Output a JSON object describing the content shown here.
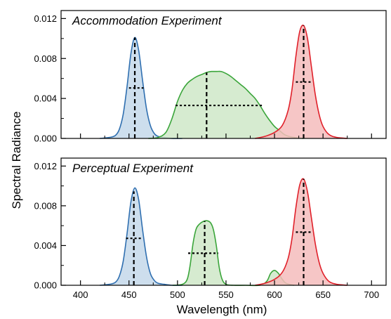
{
  "figure": {
    "ylabel": "Spectral Radiance",
    "xlabel": "Wavelength (nm)"
  },
  "colors": {
    "blue": "#2f6fb0",
    "blue_fill": "#c4d8ea",
    "green": "#3aa53a",
    "green_fill": "#cfe8c8",
    "red": "#e0202a",
    "red_fill": "#f5bcbc"
  },
  "chart_data": [
    {
      "type": "area",
      "title": "Accommodation Experiment",
      "xlabel": "Wavelength (nm)",
      "ylabel": "Spectral Radiance",
      "xlim": [
        380,
        715
      ],
      "ylim": [
        0,
        0.0128
      ],
      "yticks": [
        0.0,
        0.004,
        0.008,
        0.012
      ],
      "ytick_labels": [
        "0.000",
        "0.004",
        "0.008",
        "0.012"
      ],
      "xticks": [
        400,
        450,
        500,
        550,
        600,
        650,
        700
      ],
      "show_xtick_labels": false,
      "series": [
        {
          "color": "blue",
          "x": [
            420,
            430,
            436,
            440,
            444,
            448,
            452,
            456,
            460,
            464,
            468,
            472,
            476,
            480,
            486,
            494,
            505
          ],
          "y": [
            0,
            0.0001,
            0.0003,
            0.0009,
            0.0024,
            0.0052,
            0.0085,
            0.0101,
            0.0088,
            0.0058,
            0.003,
            0.0013,
            0.0005,
            0.0002,
            0.0001,
            0,
            0
          ],
          "peak_x": 456,
          "half_width_range": [
            450,
            465
          ]
        },
        {
          "color": "green",
          "x": [
            470,
            480,
            488,
            494,
            500,
            505,
            510,
            515,
            520,
            525,
            530,
            535,
            540,
            545,
            550,
            555,
            560,
            565,
            570,
            575,
            580,
            585,
            590,
            595,
            600,
            605,
            610,
            615,
            620,
            630
          ],
          "y": [
            0,
            0.0001,
            0.0006,
            0.0019,
            0.0037,
            0.0048,
            0.0055,
            0.0059,
            0.0062,
            0.0064,
            0.0066,
            0.0067,
            0.0067,
            0.0067,
            0.0065,
            0.0062,
            0.0058,
            0.0054,
            0.005,
            0.0045,
            0.004,
            0.0033,
            0.0025,
            0.0018,
            0.0012,
            0.0008,
            0.0004,
            0.0002,
            0.0001,
            0
          ],
          "peak_x": 530,
          "half_width_range": [
            498,
            589
          ]
        },
        {
          "color": "red",
          "x": [
            580,
            590,
            600,
            608,
            614,
            618,
            622,
            626,
            630,
            634,
            638,
            642,
            646,
            650,
            656,
            664,
            675
          ],
          "y": [
            0,
            0.0002,
            0.0006,
            0.0013,
            0.0028,
            0.0049,
            0.0082,
            0.0107,
            0.0113,
            0.01,
            0.0072,
            0.0044,
            0.0024,
            0.0012,
            0.0004,
            0.0001,
            0
          ],
          "peak_x": 630,
          "half_width_range": [
            622,
            638
          ]
        }
      ]
    },
    {
      "type": "area",
      "title": "Perceptual Experiment",
      "xlabel": "Wavelength (nm)",
      "ylabel": "Spectral Radiance",
      "xlim": [
        380,
        715
      ],
      "ylim": [
        0,
        0.0128
      ],
      "yticks": [
        0.0,
        0.004,
        0.008,
        0.012
      ],
      "ytick_labels": [
        "0.000",
        "0.004",
        "0.008",
        "0.012"
      ],
      "xticks": [
        400,
        450,
        500,
        550,
        600,
        650,
        700
      ],
      "xtick_labels": [
        "400",
        "450",
        "500",
        "550",
        "600",
        "650",
        "700"
      ],
      "show_xtick_labels": true,
      "series": [
        {
          "color": "blue",
          "x": [
            420,
            430,
            436,
            440,
            444,
            448,
            452,
            456,
            460,
            464,
            468,
            472,
            476,
            480,
            486,
            494,
            505
          ],
          "y": [
            0,
            0.0001,
            0.0003,
            0.0009,
            0.0024,
            0.0052,
            0.0084,
            0.0098,
            0.0086,
            0.0056,
            0.0029,
            0.0012,
            0.0005,
            0.0002,
            0.0001,
            0,
            0
          ],
          "peak_x": 455,
          "half_width_range": [
            447,
            464
          ]
        },
        {
          "color": "green",
          "x": [
            495,
            505,
            510,
            513,
            516,
            519,
            522,
            526,
            530,
            534,
            537,
            540,
            543,
            546,
            550,
            558,
            570,
            585,
            592,
            596,
            600,
            604,
            608,
            612,
            620
          ],
          "y": [
            0,
            0.0001,
            0.0006,
            0.002,
            0.0042,
            0.0056,
            0.0061,
            0.0064,
            0.0065,
            0.0063,
            0.0056,
            0.004,
            0.0018,
            0.0006,
            0.0001,
            0,
            0,
            0,
            0.0004,
            0.0012,
            0.0015,
            0.0012,
            0.0006,
            0.0002,
            0
          ],
          "peak_x": 528,
          "half_width_range": [
            511,
            542
          ]
        },
        {
          "color": "red",
          "x": [
            580,
            590,
            600,
            608,
            614,
            618,
            622,
            626,
            630,
            634,
            638,
            642,
            646,
            650,
            656,
            664,
            675
          ],
          "y": [
            0,
            0.0002,
            0.0006,
            0.0013,
            0.0027,
            0.0047,
            0.0078,
            0.0101,
            0.0107,
            0.0094,
            0.0068,
            0.0042,
            0.0023,
            0.0012,
            0.0004,
            0.0001,
            0
          ],
          "peak_x": 630,
          "half_width_range": [
            622,
            638
          ]
        }
      ]
    }
  ]
}
